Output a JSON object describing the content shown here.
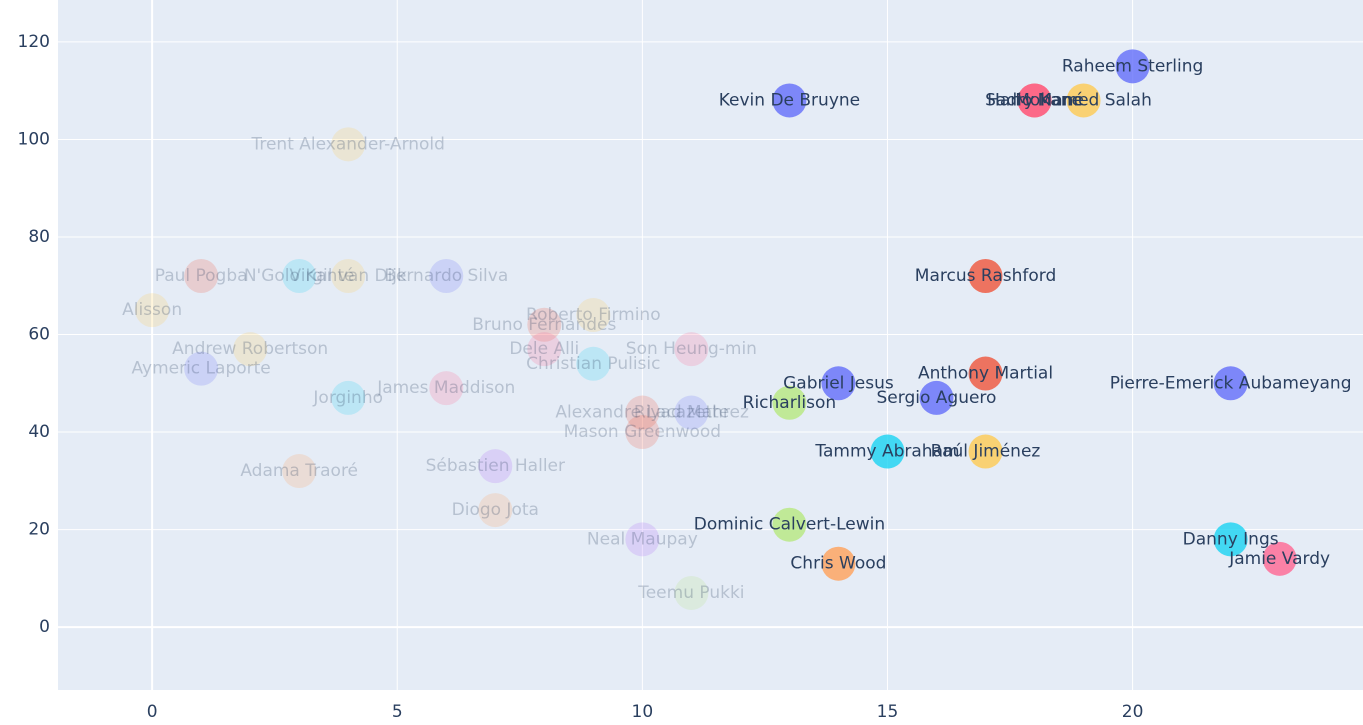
{
  "chart_data": {
    "type": "scatter",
    "xlim": [
      -1.92,
      24.7
    ],
    "ylim": [
      -12.9,
      128.6
    ],
    "xticks": [
      0,
      5,
      10,
      15,
      20
    ],
    "yticks": [
      0,
      20,
      40,
      60,
      80,
      100,
      120
    ],
    "grid": true,
    "points": [
      {
        "label": "Trent Alexander-Arnold",
        "x": 4,
        "y": 99,
        "color": "#fecb52",
        "opacity": 0.2
      },
      {
        "label": "Paul Pogba",
        "x": 1,
        "y": 72,
        "color": "#ef553b",
        "opacity": 0.2
      },
      {
        "label": "N'Golo Kanté",
        "x": 3,
        "y": 72,
        "color": "#19d3f3",
        "opacity": 0.2
      },
      {
        "label": "Virgil van Dijk",
        "x": 4,
        "y": 72,
        "color": "#fecb52",
        "opacity": 0.2
      },
      {
        "label": "Bernardo Silva",
        "x": 6,
        "y": 72,
        "color": "#636efa",
        "opacity": 0.2
      },
      {
        "label": "Alisson",
        "x": 0,
        "y": 65,
        "color": "#fecb52",
        "opacity": 0.2
      },
      {
        "label": "Roberto Firmino",
        "x": 9,
        "y": 64,
        "color": "#fecb52",
        "opacity": 0.2
      },
      {
        "label": "Bruno Fernandes",
        "x": 8,
        "y": 62,
        "color": "#ef553b",
        "opacity": 0.2
      },
      {
        "label": "Andrew Robertson",
        "x": 2,
        "y": 57,
        "color": "#fecb52",
        "opacity": 0.2
      },
      {
        "label": "Dele Alli",
        "x": 8,
        "y": 57,
        "color": "#ff6692",
        "opacity": 0.2
      },
      {
        "label": "Son Heung-min",
        "x": 11,
        "y": 57,
        "color": "#ff6692",
        "opacity": 0.2
      },
      {
        "label": "Christian Pulisic",
        "x": 9,
        "y": 54,
        "color": "#19d3f3",
        "opacity": 0.2
      },
      {
        "label": "Aymeric Laporte",
        "x": 1,
        "y": 53,
        "color": "#636efa",
        "opacity": 0.2
      },
      {
        "label": "James Maddison",
        "x": 6,
        "y": 49,
        "color": "#ff6692",
        "opacity": 0.2
      },
      {
        "label": "Jorginho",
        "x": 4,
        "y": 47,
        "color": "#19d3f3",
        "opacity": 0.2
      },
      {
        "label": "Alexandre Lacazette",
        "x": 10,
        "y": 44,
        "color": "#ef553b",
        "opacity": 0.2
      },
      {
        "label": "Riyad Mahrez",
        "x": 11,
        "y": 44,
        "color": "#636efa",
        "opacity": 0.2
      },
      {
        "label": "Mason Greenwood",
        "x": 10,
        "y": 40,
        "color": "#ef553b",
        "opacity": 0.2
      },
      {
        "label": "Sébastien Haller",
        "x": 7,
        "y": 33,
        "color": "#ab63fa",
        "opacity": 0.2
      },
      {
        "label": "Adama Traoré",
        "x": 3,
        "y": 32,
        "color": "#ffa15a",
        "opacity": 0.2
      },
      {
        "label": "Diogo Jota",
        "x": 7,
        "y": 24,
        "color": "#ffa15a",
        "opacity": 0.2
      },
      {
        "label": "Neal Maupay",
        "x": 10,
        "y": 18,
        "color": "#ab63fa",
        "opacity": 0.2
      },
      {
        "label": "Teemu Pukki",
        "x": 11,
        "y": 7,
        "color": "#b6e880",
        "opacity": 0.2
      },
      {
        "label": "Raheem Sterling",
        "x": 20,
        "y": 115,
        "color": "#636efa",
        "opacity": 0.8
      },
      {
        "label": "Kevin De Bruyne",
        "x": 13,
        "y": 108,
        "color": "#636efa",
        "opacity": 0.8
      },
      {
        "label": "Sadio Mané",
        "x": 18,
        "y": 108,
        "color": "#ef553b",
        "opacity": 0.8
      },
      {
        "label": "Harry Kane",
        "x": 18,
        "y": 108,
        "color": "#ff6692",
        "opacity": 0.8
      },
      {
        "label": "Mohamed Salah",
        "x": 19,
        "y": 108,
        "color": "#fecb52",
        "opacity": 0.8
      },
      {
        "label": "Marcus Rashford",
        "x": 17,
        "y": 72,
        "color": "#ef553b",
        "opacity": 0.8
      },
      {
        "label": "Anthony Martial",
        "x": 17,
        "y": 52,
        "color": "#ef553b",
        "opacity": 0.8
      },
      {
        "label": "Pierre-Emerick Aubameyang",
        "x": 22,
        "y": 50,
        "color": "#636efa",
        "opacity": 0.8
      },
      {
        "label": "Gabriel Jesus",
        "x": 14,
        "y": 50,
        "color": "#636efa",
        "opacity": 0.8
      },
      {
        "label": "Sergio Aguero",
        "x": 16,
        "y": 47,
        "color": "#636efa",
        "opacity": 0.8
      },
      {
        "label": "Richarlison",
        "x": 13,
        "y": 46,
        "color": "#b6e880",
        "opacity": 0.8
      },
      {
        "label": "Tammy Abraham",
        "x": 15,
        "y": 36,
        "color": "#19d3f3",
        "opacity": 0.8
      },
      {
        "label": "Raúl Jiménez",
        "x": 17,
        "y": 36,
        "color": "#fecb52",
        "opacity": 0.8
      },
      {
        "label": "Dominic Calvert-Lewin",
        "x": 13,
        "y": 21,
        "color": "#b6e880",
        "opacity": 0.8
      },
      {
        "label": "Chris Wood",
        "x": 14,
        "y": 13,
        "color": "#ffa15a",
        "opacity": 0.8
      },
      {
        "label": "Danny Ings",
        "x": 22,
        "y": 18,
        "color": "#19d3f3",
        "opacity": 0.8
      },
      {
        "label": "Jamie Vardy",
        "x": 23,
        "y": 14,
        "color": "#ff6692",
        "opacity": 0.8
      }
    ]
  }
}
